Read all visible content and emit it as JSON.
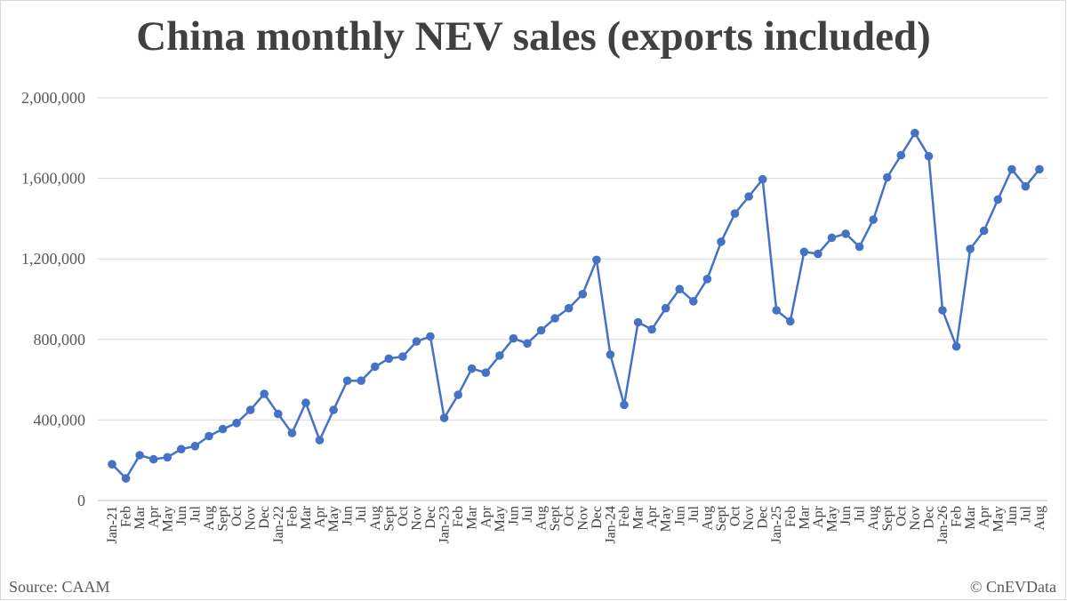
{
  "title": "China monthly NEV sales (exports included)",
  "source": "Source: CAAM",
  "copyright": "© CnEVData",
  "colors": {
    "line": "#4472c4",
    "grid": "#d9d9d9",
    "axis": "#bfbfbf",
    "title": "#404040",
    "text": "#595959"
  },
  "chart_data": {
    "type": "line",
    "title": "China monthly NEV sales (exports included)",
    "xlabel": "",
    "ylabel": "",
    "ylim": [
      0,
      2000000
    ],
    "yticks": [
      0,
      400000,
      800000,
      1200000,
      1600000,
      2000000
    ],
    "ytick_labels": [
      "0",
      "400,000",
      "800,000",
      "1,200,000",
      "1,600,000",
      "2,000,000"
    ],
    "grid": "horizontal",
    "legend": "none",
    "categories": [
      "Jan-21",
      "Feb",
      "Mar",
      "Apr",
      "May",
      "Jun",
      "Jul",
      "Aug",
      "Sept",
      "Oct",
      "Nov",
      "Dec",
      "Jan-22",
      "Feb",
      "Mar",
      "Apr",
      "May",
      "Jun",
      "Jul",
      "Aug",
      "Sept",
      "Oct",
      "Nov",
      "Dec",
      "Jan-23",
      "Feb",
      "Mar",
      "Apr",
      "May",
      "Jun",
      "Jul",
      "Aug",
      "Sept",
      "Oct",
      "Nov",
      "Dec",
      "Jan-24",
      "Feb",
      "Mar",
      "Apr",
      "May",
      "Jun",
      "Jul",
      "Aug",
      "Sept",
      "Oct",
      "Nov",
      "Dec",
      "Jan-25",
      "Feb",
      "Mar",
      "Apr",
      "May",
      "Jun",
      "Jul",
      "Aug",
      "Sept",
      "Oct",
      "Nov",
      "Dec",
      "Jan-26",
      "Feb",
      "Mar",
      "Apr",
      "May",
      "Jun",
      "Jul",
      "Aug"
    ],
    "series": [
      {
        "values": [
          180000,
          110000,
          225000,
          205000,
          215000,
          255000,
          270000,
          320000,
          355000,
          385000,
          450000,
          530000,
          430000,
          335000,
          485000,
          300000,
          450000,
          595000,
          595000,
          665000,
          705000,
          715000,
          790000,
          815000,
          410000,
          525000,
          655000,
          635000,
          720000,
          805000,
          780000,
          845000,
          905000,
          955000,
          1025000,
          1195000,
          725000,
          475000,
          885000,
          850000,
          955000,
          1050000,
          990000,
          1100000,
          1285000,
          1425000,
          1510000,
          1595000,
          945000,
          890000,
          1235000,
          1225000,
          1305000,
          1325000,
          1260000,
          1395000,
          1605000,
          1715000,
          1825000,
          1710000,
          945000,
          765000,
          1250000,
          1340000,
          1495000,
          1645000,
          1560000,
          1645000
        ]
      }
    ]
  }
}
